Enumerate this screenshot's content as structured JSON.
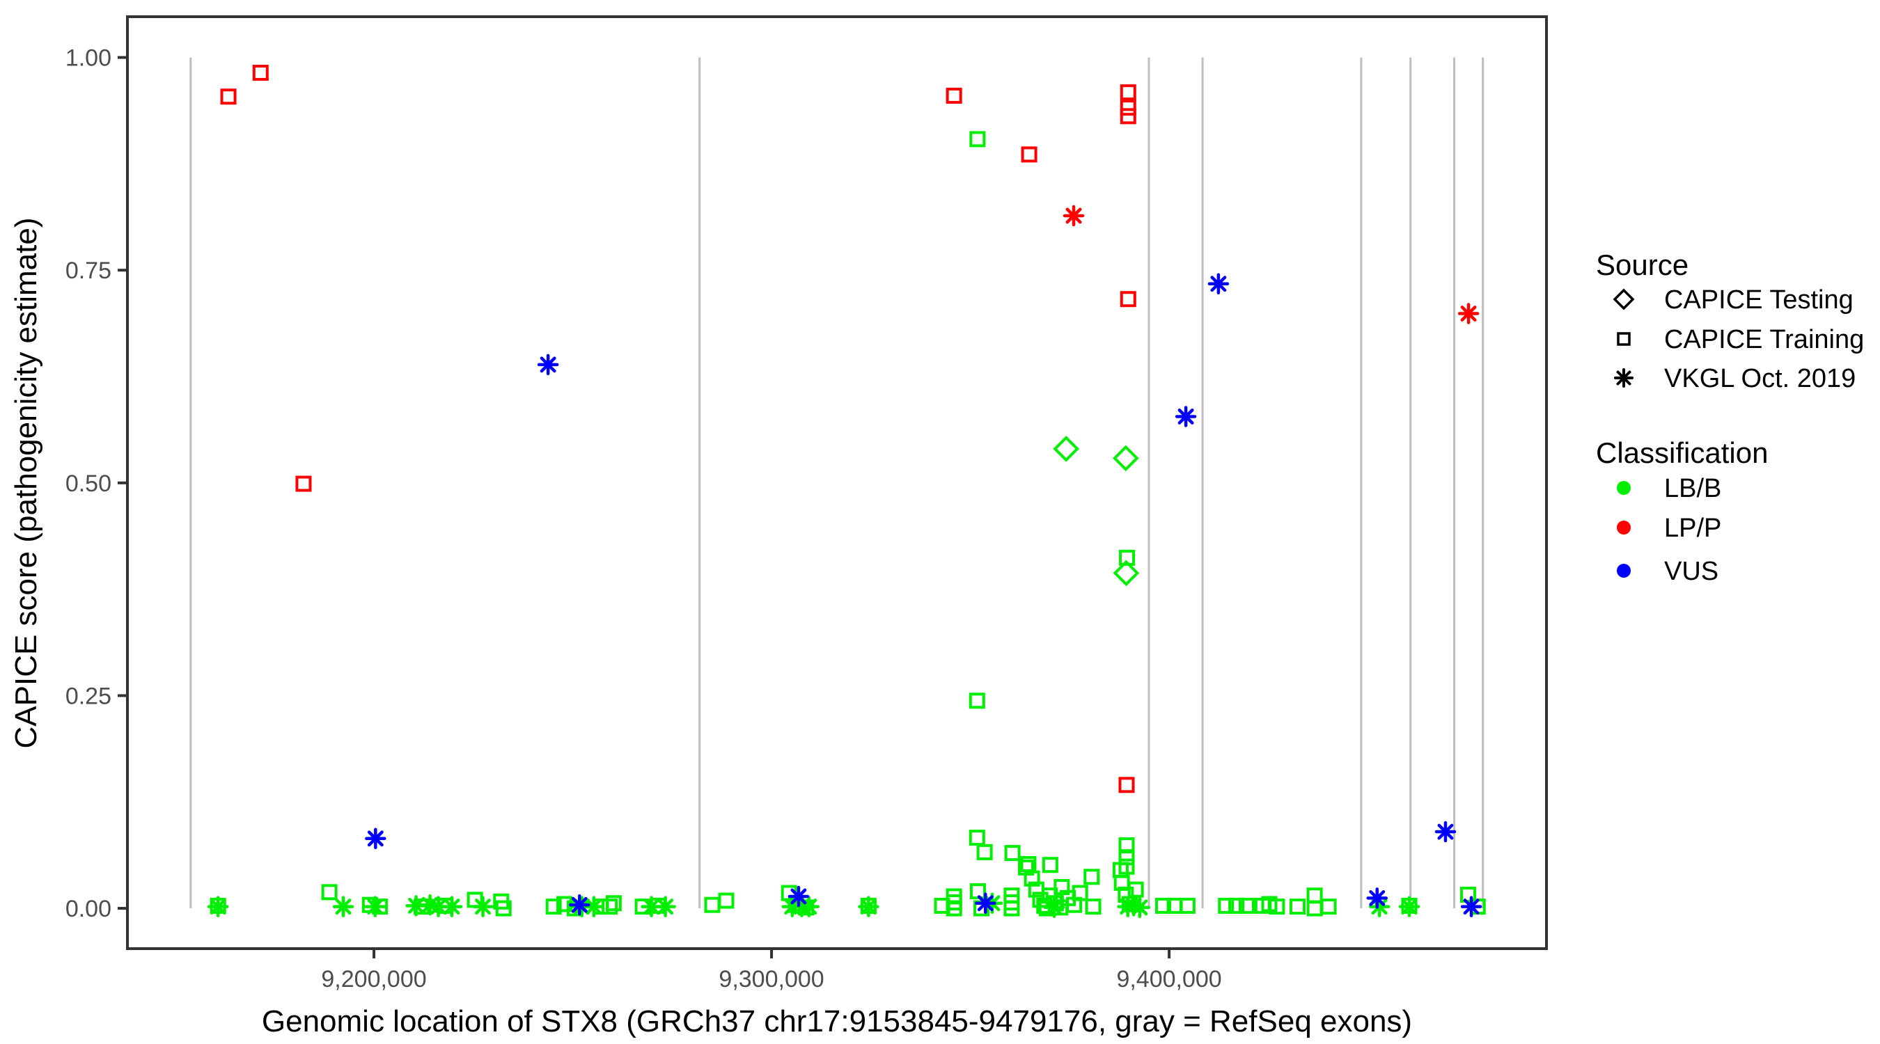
{
  "chart_data": {
    "type": "scatter",
    "xlabel": "Genomic location of STX8 (GRCh37 chr17:9153845-9479176, gray = RefSeq exons)",
    "ylabel": "CAPICE score (pathogenicity estimate)",
    "xlim": [
      9138000,
      9494900
    ],
    "ylim": [
      -0.0474,
      1.0479
    ],
    "grid": "off",
    "x_ticks": [
      {
        "value": 9200000,
        "label": "9,200,000"
      },
      {
        "value": 9300000,
        "label": "9,300,000"
      },
      {
        "value": 9400000,
        "label": "9,400,000"
      }
    ],
    "y_ticks": [
      {
        "value": 0.0,
        "label": "0.00"
      },
      {
        "value": 0.25,
        "label": "0.25"
      },
      {
        "value": 0.5,
        "label": "0.50"
      },
      {
        "value": 0.75,
        "label": "0.75"
      },
      {
        "value": 1.0,
        "label": "1.00"
      }
    ],
    "exon_note": "gray vertical segments mark RefSeq exon positions, drawn from score 0 to 1",
    "exon_positions": [
      9153900,
      9281900,
      9394900,
      9408400,
      9448300,
      9460700,
      9471700,
      9478900
    ],
    "colors": {
      "exon_line": "#bfbfbf",
      "panel_border": "#333333",
      "tick_mark": "#333333",
      "tick_label": "#4d4d4d"
    },
    "classification_colors": {
      "LB/B": "#00ee00",
      "LP/P": "#ff0000",
      "VUS": "#0000ff"
    },
    "legend": {
      "source": {
        "title": "Source",
        "items": [
          {
            "label": "CAPICE Testing",
            "marker": "diamond"
          },
          {
            "label": "CAPICE Training",
            "marker": "square"
          },
          {
            "label": "VKGL Oct. 2019",
            "marker": "asterisk"
          }
        ]
      },
      "classification": {
        "title": "Classification",
        "items": [
          {
            "label": "LB/B",
            "color": "#00ee00"
          },
          {
            "label": "LP/P",
            "color": "#ff0000"
          },
          {
            "label": "VUS",
            "color": "#0000ff"
          }
        ]
      }
    },
    "point_format": [
      "position_bp",
      "capice_score",
      "classification"
    ],
    "series": [
      {
        "name": "CAPICE Testing",
        "marker": "diamond",
        "points": [
          [
            9374100,
            0.54,
            "LB/B"
          ],
          [
            9389100,
            0.529,
            "LB/B"
          ],
          [
            9389200,
            0.394,
            "LB/B"
          ]
        ]
      },
      {
        "name": "CAPICE Training",
        "marker": "square",
        "points": [
          [
            9351800,
            0.904,
            "LB/B"
          ],
          [
            9351700,
            0.244,
            "LB/B"
          ],
          [
            9389400,
            0.412,
            "LB/B"
          ],
          [
            9351700,
            0.083,
            "LB/B"
          ],
          [
            9353600,
            0.066,
            "LB/B"
          ],
          [
            9360600,
            0.065,
            "LB/B"
          ],
          [
            9364600,
            0.052,
            "LB/B"
          ],
          [
            9370100,
            0.051,
            "LB/B"
          ],
          [
            9389300,
            0.074,
            "LB/B"
          ],
          [
            9389300,
            0.06,
            "LB/B"
          ],
          [
            9389300,
            0.049,
            "LB/B"
          ],
          [
            9188800,
            0.019,
            "LB/B"
          ],
          [
            9160800,
            0.003,
            "LB/B"
          ],
          [
            9199000,
            0.004,
            "LB/B"
          ],
          [
            9201500,
            0.002,
            "LB/B"
          ],
          [
            9212000,
            0.002,
            "LB/B"
          ],
          [
            9218000,
            0.003,
            "LB/B"
          ],
          [
            9225400,
            0.01,
            "LB/B"
          ],
          [
            9232000,
            0.008,
            "LB/B"
          ],
          [
            9232600,
            0.0,
            "LB/B"
          ],
          [
            9245200,
            0.002,
            "LB/B"
          ],
          [
            9247900,
            0.005,
            "LB/B"
          ],
          [
            9250500,
            0.0,
            "LB/B"
          ],
          [
            9257100,
            0.002,
            "LB/B"
          ],
          [
            9259300,
            0.002,
            "LB/B"
          ],
          [
            9260300,
            0.006,
            "LB/B"
          ],
          [
            9267600,
            0.002,
            "LB/B"
          ],
          [
            9271500,
            0.003,
            "LB/B"
          ],
          [
            9285100,
            0.004,
            "LB/B"
          ],
          [
            9288600,
            0.009,
            "LB/B"
          ],
          [
            9304400,
            0.018,
            "LB/B"
          ],
          [
            9306200,
            0.004,
            "LB/B"
          ],
          [
            9308700,
            0.001,
            "LB/B"
          ],
          [
            9324400,
            0.003,
            "LB/B"
          ],
          [
            9342900,
            0.003,
            "LB/B"
          ],
          [
            9345900,
            0.014,
            "LB/B"
          ],
          [
            9345900,
            0.007,
            "LB/B"
          ],
          [
            9345900,
            0.0,
            "LB/B"
          ],
          [
            9351900,
            0.02,
            "LB/B"
          ],
          [
            9352800,
            0.0,
            "LB/B"
          ],
          [
            9360400,
            0.015,
            "LB/B"
          ],
          [
            9360400,
            0.007,
            "LB/B"
          ],
          [
            9360400,
            0.0,
            "LB/B"
          ],
          [
            9364000,
            0.048,
            "LB/B"
          ],
          [
            9365500,
            0.035,
            "LB/B"
          ],
          [
            9366600,
            0.022,
            "LB/B"
          ],
          [
            9367600,
            0.01,
            "LB/B"
          ],
          [
            9368600,
            0.003,
            "LB/B"
          ],
          [
            9369200,
            0.0,
            "LB/B"
          ],
          [
            9370000,
            0.015,
            "LB/B"
          ],
          [
            9371500,
            0.006,
            "LB/B"
          ],
          [
            9372600,
            0.001,
            "LB/B"
          ],
          [
            9373000,
            0.025,
            "LB/B"
          ],
          [
            9374500,
            0.012,
            "LB/B"
          ],
          [
            9376100,
            0.004,
            "LB/B"
          ],
          [
            9377600,
            0.018,
            "LB/B"
          ],
          [
            9380500,
            0.037,
            "LB/B"
          ],
          [
            9380900,
            0.002,
            "LB/B"
          ],
          [
            9387800,
            0.045,
            "LB/B"
          ],
          [
            9388100,
            0.03,
            "LB/B"
          ],
          [
            9389100,
            0.016,
            "LB/B"
          ],
          [
            9390100,
            0.005,
            "LB/B"
          ],
          [
            9391600,
            0.022,
            "LB/B"
          ],
          [
            9398500,
            0.003,
            "LB/B"
          ],
          [
            9401400,
            0.003,
            "LB/B"
          ],
          [
            9404600,
            0.003,
            "LB/B"
          ],
          [
            9414300,
            0.003,
            "LB/B"
          ],
          [
            9416900,
            0.003,
            "LB/B"
          ],
          [
            9419500,
            0.003,
            "LB/B"
          ],
          [
            9423500,
            0.003,
            "LB/B"
          ],
          [
            9425200,
            0.005,
            "LB/B"
          ],
          [
            9427100,
            0.002,
            "LB/B"
          ],
          [
            9432300,
            0.002,
            "LB/B"
          ],
          [
            9436600,
            0.015,
            "LB/B"
          ],
          [
            9436600,
            0.0,
            "LB/B"
          ],
          [
            9440100,
            0.002,
            "LB/B"
          ],
          [
            9460400,
            0.003,
            "LB/B"
          ],
          [
            9475200,
            0.016,
            "LB/B"
          ],
          [
            9477600,
            0.002,
            "LB/B"
          ],
          [
            9163400,
            0.954,
            "LP/P"
          ],
          [
            9171500,
            0.982,
            "LP/P"
          ],
          [
            9182300,
            0.499,
            "LP/P"
          ],
          [
            9345900,
            0.955,
            "LP/P"
          ],
          [
            9364800,
            0.886,
            "LP/P"
          ],
          [
            9389700,
            0.959,
            "LP/P"
          ],
          [
            9389700,
            0.941,
            "LP/P"
          ],
          [
            9389700,
            0.931,
            "LP/P"
          ],
          [
            9389700,
            0.716,
            "LP/P"
          ],
          [
            9389300,
            0.145,
            "LP/P"
          ]
        ]
      },
      {
        "name": "VKGL Oct. 2019",
        "marker": "asterisk",
        "points": [
          [
            9160800,
            0.002,
            "LB/B"
          ],
          [
            9192300,
            0.002,
            "LB/B"
          ],
          [
            9200300,
            0.002,
            "LB/B"
          ],
          [
            9210600,
            0.003,
            "LB/B"
          ],
          [
            9214100,
            0.004,
            "LB/B"
          ],
          [
            9216200,
            0.002,
            "LB/B"
          ],
          [
            9219600,
            0.002,
            "LB/B"
          ],
          [
            9227400,
            0.002,
            "LB/B"
          ],
          [
            9252300,
            0.002,
            "LB/B"
          ],
          [
            9255300,
            0.002,
            "LB/B"
          ],
          [
            9269800,
            0.002,
            "LB/B"
          ],
          [
            9273300,
            0.002,
            "LB/B"
          ],
          [
            9305200,
            0.002,
            "LB/B"
          ],
          [
            9307600,
            0.002,
            "LB/B"
          ],
          [
            9309400,
            0.002,
            "LB/B"
          ],
          [
            9324400,
            0.002,
            "LB/B"
          ],
          [
            9355500,
            0.006,
            "LB/B"
          ],
          [
            9371100,
            0.001,
            "LB/B"
          ],
          [
            9389600,
            0.002,
            "LB/B"
          ],
          [
            9391100,
            0.003,
            "LB/B"
          ],
          [
            9392600,
            0.001,
            "LB/B"
          ],
          [
            9452900,
            0.002,
            "LB/B"
          ],
          [
            9460400,
            0.002,
            "LB/B"
          ],
          [
            9376000,
            0.814,
            "LP/P"
          ],
          [
            9475300,
            0.699,
            "LP/P"
          ],
          [
            9243800,
            0.639,
            "VUS"
          ],
          [
            9412400,
            0.734,
            "VUS"
          ],
          [
            9404200,
            0.578,
            "VUS"
          ],
          [
            9200400,
            0.082,
            "VUS"
          ],
          [
            9469500,
            0.09,
            "VUS"
          ],
          [
            9306800,
            0.014,
            "VUS"
          ],
          [
            9353800,
            0.006,
            "VUS"
          ],
          [
            9251700,
            0.004,
            "VUS"
          ],
          [
            9452300,
            0.012,
            "VUS"
          ],
          [
            9476000,
            0.002,
            "VUS"
          ]
        ]
      }
    ]
  }
}
